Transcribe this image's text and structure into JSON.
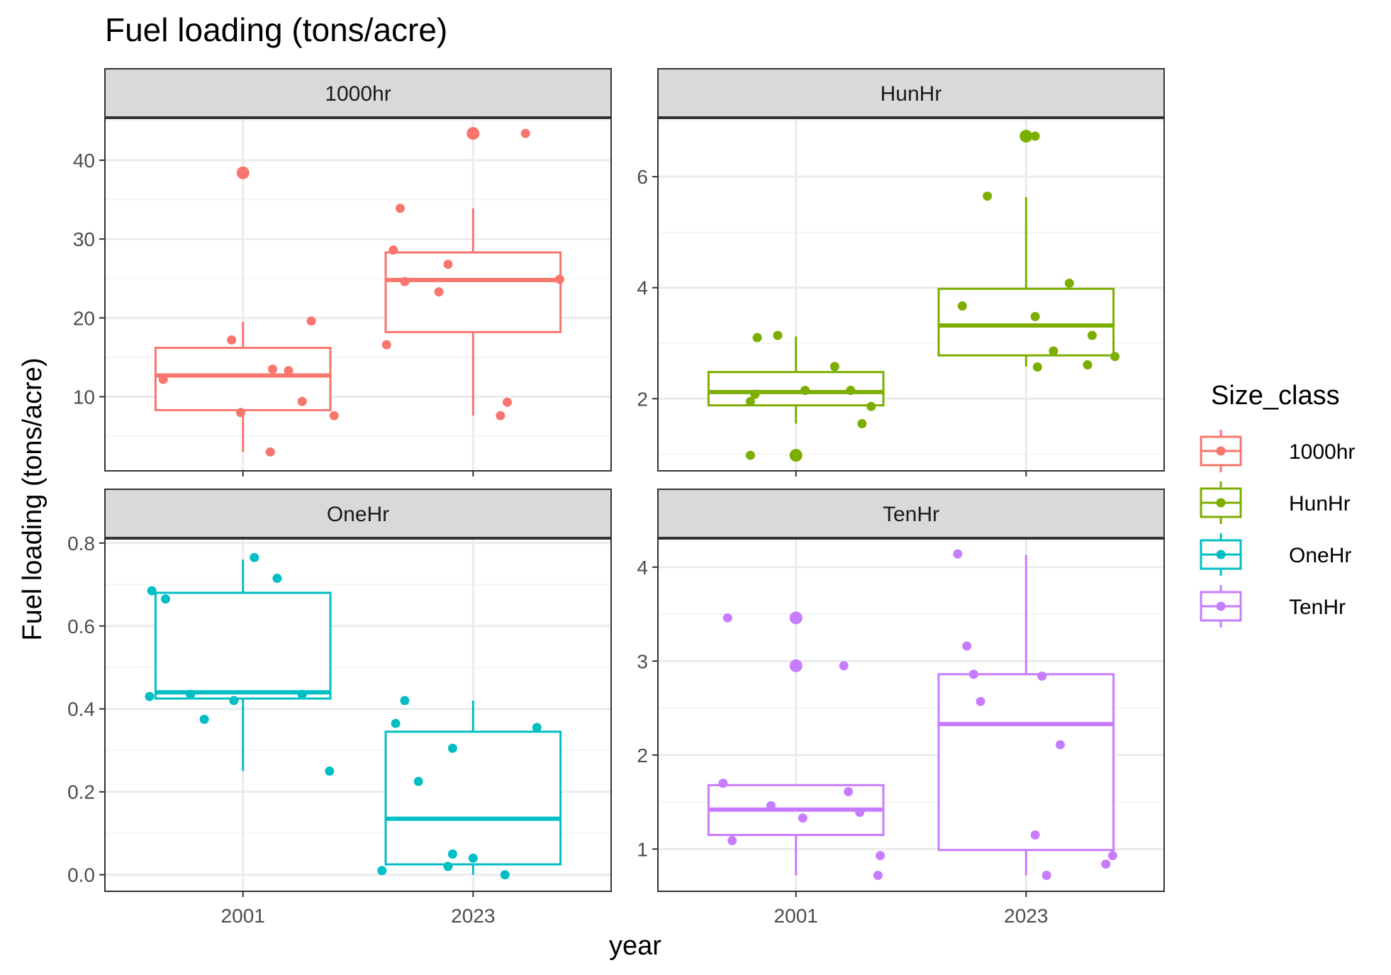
{
  "chart_data": {
    "type": "boxplot",
    "title": "Fuel loading (tons/acre)",
    "xlabel": "year",
    "ylabel": "Fuel loading (tons/acre)",
    "categories": [
      "2001",
      "2023"
    ],
    "legend": {
      "title": "Size_class",
      "position": "right",
      "entries": [
        "1000hr",
        "HunHr",
        "OneHr",
        "TenHr"
      ]
    },
    "panels": [
      {
        "name": "1000hr",
        "color": "#F8766D",
        "ylim": [
          0.6,
          45.3
        ],
        "yticks": [
          10,
          20,
          30,
          40
        ],
        "boxes": [
          {
            "x": "2001",
            "min": 3.0,
            "q1": 8.3,
            "median": 12.7,
            "q3": 16.2,
            "max": 19.5,
            "outliers": [
              38.4
            ]
          },
          {
            "x": "2023",
            "min": 7.6,
            "q1": 18.2,
            "median": 24.8,
            "q3": 28.3,
            "max": 33.9,
            "outliers": [
              43.4
            ]
          }
        ],
        "points": [
          {
            "x": "2001",
            "j": -0.35,
            "y": 12.2
          },
          {
            "x": "2001",
            "j": -0.05,
            "y": 17.2
          },
          {
            "x": "2001",
            "j": -0.01,
            "y": 8.0
          },
          {
            "x": "2001",
            "j": 0.12,
            "y": 3.0
          },
          {
            "x": "2001",
            "j": 0.13,
            "y": 13.5
          },
          {
            "x": "2001",
            "j": 0.2,
            "y": 13.3
          },
          {
            "x": "2001",
            "j": 0.26,
            "y": 9.4
          },
          {
            "x": "2001",
            "j": 0.3,
            "y": 19.6
          },
          {
            "x": "2001",
            "j": 0.4,
            "y": 7.6
          },
          {
            "x": "2001",
            "j": 0.0,
            "y": 38.4
          },
          {
            "x": "2023",
            "j": -0.38,
            "y": 16.6
          },
          {
            "x": "2023",
            "j": -0.35,
            "y": 28.6
          },
          {
            "x": "2023",
            "j": -0.32,
            "y": 33.9
          },
          {
            "x": "2023",
            "j": -0.3,
            "y": 24.6
          },
          {
            "x": "2023",
            "j": -0.15,
            "y": 23.3
          },
          {
            "x": "2023",
            "j": -0.11,
            "y": 26.8
          },
          {
            "x": "2023",
            "j": 0.12,
            "y": 7.6
          },
          {
            "x": "2023",
            "j": 0.15,
            "y": 9.3
          },
          {
            "x": "2023",
            "j": 0.23,
            "y": 43.4
          },
          {
            "x": "2023",
            "j": 0.38,
            "y": 24.9
          },
          {
            "x": "2023",
            "j": 0.0,
            "y": 43.4
          }
        ]
      },
      {
        "name": "HunHr",
        "color": "#7CAE00",
        "ylim": [
          0.7,
          7.05
        ],
        "yticks": [
          2,
          4,
          6
        ],
        "boxes": [
          {
            "x": "2001",
            "min": 1.55,
            "q1": 1.88,
            "median": 2.12,
            "q3": 2.48,
            "max": 3.12,
            "outliers": [
              0.98
            ]
          },
          {
            "x": "2023",
            "min": 2.58,
            "q1": 2.78,
            "median": 3.32,
            "q3": 3.98,
            "max": 5.63,
            "outliers": [
              6.73
            ]
          }
        ],
        "points": [
          {
            "x": "2001",
            "j": -0.2,
            "y": 0.98
          },
          {
            "x": "2001",
            "j": -0.2,
            "y": 1.95
          },
          {
            "x": "2001",
            "j": -0.18,
            "y": 2.08
          },
          {
            "x": "2001",
            "j": -0.17,
            "y": 3.1
          },
          {
            "x": "2001",
            "j": -0.08,
            "y": 3.14
          },
          {
            "x": "2001",
            "j": 0.04,
            "y": 2.15
          },
          {
            "x": "2001",
            "j": 0.17,
            "y": 2.58
          },
          {
            "x": "2001",
            "j": 0.24,
            "y": 2.15
          },
          {
            "x": "2001",
            "j": 0.29,
            "y": 1.55
          },
          {
            "x": "2001",
            "j": 0.33,
            "y": 1.86
          },
          {
            "x": "2001",
            "j": 0.0,
            "y": 0.98
          },
          {
            "x": "2023",
            "j": -0.28,
            "y": 3.67
          },
          {
            "x": "2023",
            "j": -0.17,
            "y": 5.65
          },
          {
            "x": "2023",
            "j": 0.04,
            "y": 6.73
          },
          {
            "x": "2023",
            "j": 0.04,
            "y": 3.48
          },
          {
            "x": "2023",
            "j": 0.05,
            "y": 2.57
          },
          {
            "x": "2023",
            "j": 0.12,
            "y": 2.86
          },
          {
            "x": "2023",
            "j": 0.19,
            "y": 4.08
          },
          {
            "x": "2023",
            "j": 0.27,
            "y": 2.61
          },
          {
            "x": "2023",
            "j": 0.29,
            "y": 3.14
          },
          {
            "x": "2023",
            "j": 0.39,
            "y": 2.76
          },
          {
            "x": "2023",
            "j": 0.0,
            "y": 6.73
          }
        ]
      },
      {
        "name": "OneHr",
        "color": "#00BFC4",
        "ylim": [
          -0.04,
          0.81
        ],
        "yticks": [
          0.0,
          0.2,
          0.4,
          0.6,
          0.8
        ],
        "tick_decimals": 1,
        "boxes": [
          {
            "x": "2001",
            "min": 0.25,
            "q1": 0.425,
            "median": 0.44,
            "q3": 0.68,
            "max": 0.76,
            "outliers": []
          },
          {
            "x": "2023",
            "min": 0.0,
            "q1": 0.025,
            "median": 0.135,
            "q3": 0.345,
            "max": 0.42,
            "outliers": []
          }
        ],
        "points": [
          {
            "x": "2001",
            "j": -0.41,
            "y": 0.43
          },
          {
            "x": "2001",
            "j": -0.4,
            "y": 0.685
          },
          {
            "x": "2001",
            "j": -0.34,
            "y": 0.665
          },
          {
            "x": "2001",
            "j": -0.23,
            "y": 0.435
          },
          {
            "x": "2001",
            "j": -0.17,
            "y": 0.375
          },
          {
            "x": "2001",
            "j": -0.04,
            "y": 0.42
          },
          {
            "x": "2001",
            "j": 0.05,
            "y": 0.765
          },
          {
            "x": "2001",
            "j": 0.15,
            "y": 0.715
          },
          {
            "x": "2001",
            "j": 0.26,
            "y": 0.435
          },
          {
            "x": "2001",
            "j": 0.38,
            "y": 0.25
          },
          {
            "x": "2023",
            "j": -0.4,
            "y": 0.01
          },
          {
            "x": "2023",
            "j": -0.34,
            "y": 0.365
          },
          {
            "x": "2023",
            "j": -0.3,
            "y": 0.42
          },
          {
            "x": "2023",
            "j": -0.24,
            "y": 0.225
          },
          {
            "x": "2023",
            "j": -0.11,
            "y": 0.02
          },
          {
            "x": "2023",
            "j": -0.09,
            "y": 0.05
          },
          {
            "x": "2023",
            "j": -0.09,
            "y": 0.305
          },
          {
            "x": "2023",
            "j": 0.0,
            "y": 0.04
          },
          {
            "x": "2023",
            "j": 0.14,
            "y": 0.0
          },
          {
            "x": "2023",
            "j": 0.28,
            "y": 0.355
          }
        ]
      },
      {
        "name": "TenHr",
        "color": "#C77CFF",
        "ylim": [
          0.55,
          4.3
        ],
        "yticks": [
          1,
          2,
          3,
          4
        ],
        "boxes": [
          {
            "x": "2001",
            "min": 0.72,
            "q1": 1.15,
            "median": 1.42,
            "q3": 1.68,
            "max": 1.68,
            "outliers": [
              2.95,
              3.46
            ]
          },
          {
            "x": "2023",
            "min": 0.72,
            "q1": 0.99,
            "median": 2.33,
            "q3": 2.86,
            "max": 4.13,
            "outliers": []
          }
        ],
        "points": [
          {
            "x": "2001",
            "j": -0.32,
            "y": 1.7
          },
          {
            "x": "2001",
            "j": -0.3,
            "y": 3.46
          },
          {
            "x": "2001",
            "j": -0.28,
            "y": 1.09
          },
          {
            "x": "2001",
            "j": -0.11,
            "y": 1.46
          },
          {
            "x": "2001",
            "j": 0.03,
            "y": 1.33
          },
          {
            "x": "2001",
            "j": 0.21,
            "y": 2.95
          },
          {
            "x": "2001",
            "j": 0.23,
            "y": 1.61
          },
          {
            "x": "2001",
            "j": 0.28,
            "y": 1.39
          },
          {
            "x": "2001",
            "j": 0.36,
            "y": 0.72
          },
          {
            "x": "2001",
            "j": 0.37,
            "y": 0.93
          },
          {
            "x": "2001",
            "j": 0.0,
            "y": 3.46
          },
          {
            "x": "2001",
            "j": 0.0,
            "y": 2.95
          },
          {
            "x": "2023",
            "j": -0.3,
            "y": 4.14
          },
          {
            "x": "2023",
            "j": -0.26,
            "y": 3.16
          },
          {
            "x": "2023",
            "j": -0.23,
            "y": 2.86
          },
          {
            "x": "2023",
            "j": -0.2,
            "y": 2.57
          },
          {
            "x": "2023",
            "j": 0.04,
            "y": 1.15
          },
          {
            "x": "2023",
            "j": 0.07,
            "y": 2.84
          },
          {
            "x": "2023",
            "j": 0.09,
            "y": 0.72
          },
          {
            "x": "2023",
            "j": 0.15,
            "y": 2.11
          },
          {
            "x": "2023",
            "j": 0.35,
            "y": 0.84
          },
          {
            "x": "2023",
            "j": 0.38,
            "y": 0.93
          }
        ]
      }
    ]
  }
}
